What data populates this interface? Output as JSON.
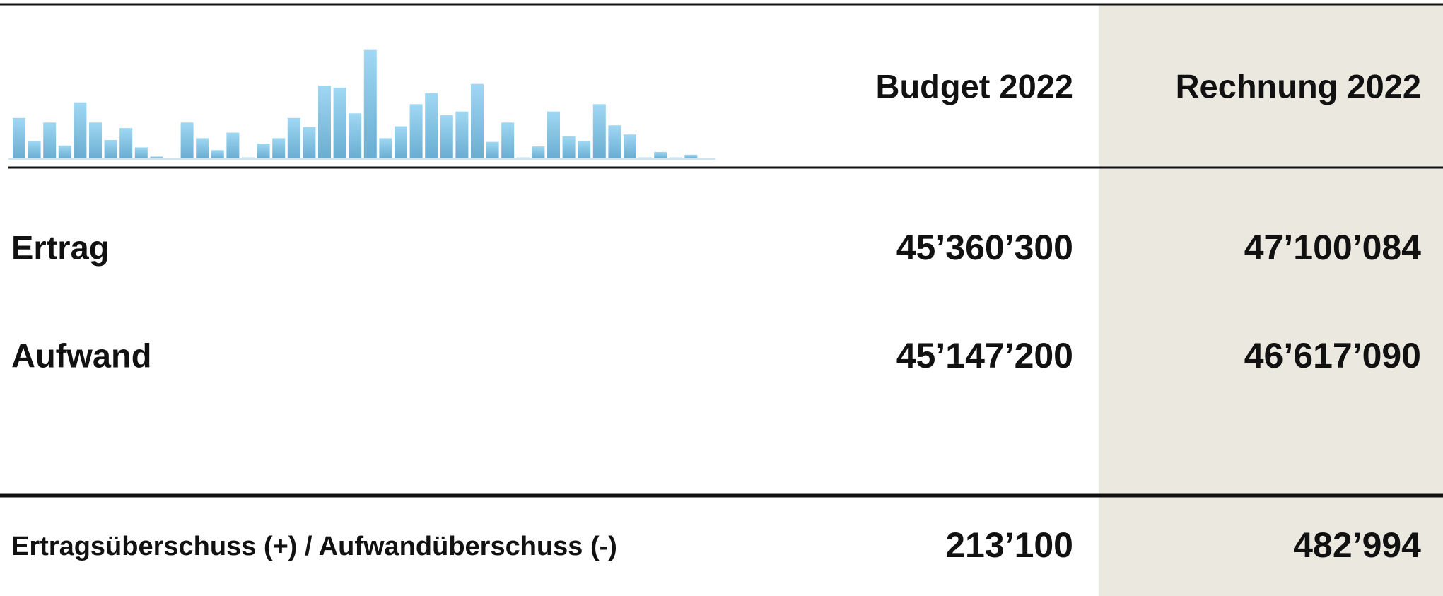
{
  "table": {
    "header": [
      "Budget 2022",
      "Rechnung 2022"
    ],
    "rows": [
      [
        "Ertrag",
        "45’360’300",
        "47’100’084"
      ],
      [
        "Aufwand",
        "45’147’200",
        "46’617’090"
      ],
      [
        "Ertragsüberschuss (+) / Aufwandüberschuss (-)",
        "213’100",
        "482’994"
      ]
    ]
  },
  "sparkline": {
    "type": "bar",
    "color": "#86c9ea",
    "values": [
      44,
      19,
      39,
      14,
      61,
      39,
      20,
      33,
      12,
      2,
      0,
      39,
      22,
      9,
      28,
      1,
      16,
      22,
      44,
      34,
      79,
      77,
      49,
      118,
      22,
      35,
      59,
      71,
      47,
      51,
      81,
      18,
      39,
      1,
      13,
      51,
      24,
      19,
      59,
      36,
      26,
      1,
      7,
      1,
      4,
      0
    ]
  }
}
